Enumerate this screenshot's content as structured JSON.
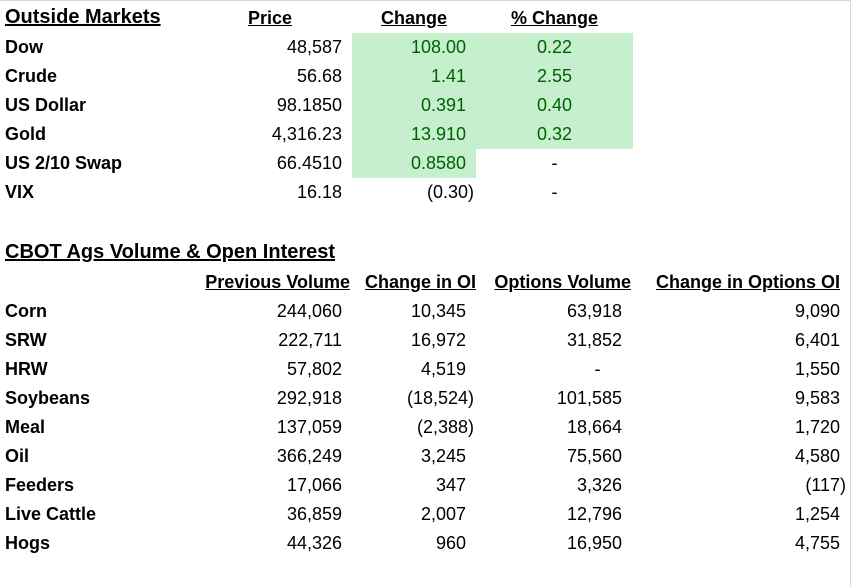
{
  "outside_markets": {
    "title": "Outside Markets",
    "headers": {
      "price": "Price",
      "change": "Change ",
      "pct_change": "% Change"
    },
    "rows": [
      {
        "name": "Dow",
        "price": "48,587",
        "change": "108.00",
        "pct": "0.22"
      },
      {
        "name": "Crude",
        "price": "56.68",
        "change": "1.41",
        "pct": "2.55"
      },
      {
        "name": "US Dollar",
        "price": "98.1850",
        "change": "0.391",
        "pct": "0.40"
      },
      {
        "name": "Gold",
        "price": "4,316.23",
        "change": "13.910",
        "pct": "0.32"
      },
      {
        "name": "US 2/10 Swap",
        "price": "66.4510",
        "change": "0.8580",
        "pct": "-"
      },
      {
        "name": "VIX",
        "price": "16.18",
        "change": "(0.30)",
        "pct": "-"
      }
    ],
    "highlight_color": "#c6efce",
    "positive_text_color": "#006100"
  },
  "cbot": {
    "title": "CBOT Ags Volume & Open Interest",
    "headers": {
      "prev_volume": "Previous Volume",
      "change_oi": "Change in OI",
      "options_volume": "Options Volume",
      "change_options_oi": "Change in Options OI"
    },
    "rows": [
      {
        "name": "Corn",
        "prev": "244,060",
        "oi": "10,345",
        "opt": "63,918",
        "optoi": "9,090"
      },
      {
        "name": "SRW",
        "prev": "222,711",
        "oi": "16,972",
        "opt": "31,852",
        "optoi": "6,401"
      },
      {
        "name": "HRW",
        "prev": "57,802",
        "oi": "4,519",
        "opt": "-",
        "optoi": "1,550"
      },
      {
        "name": "Soybeans",
        "prev": "292,918",
        "oi": "(18,524)",
        "opt": "101,585",
        "optoi": "9,583"
      },
      {
        "name": "Meal",
        "prev": "137,059",
        "oi": "(2,388)",
        "opt": "18,664",
        "optoi": "1,720"
      },
      {
        "name": "Oil",
        "prev": "366,249",
        "oi": "3,245",
        "opt": "75,560",
        "optoi": "4,580"
      },
      {
        "name": "Feeders",
        "prev": "17,066",
        "oi": "347",
        "opt": "3,326",
        "optoi": "(117)"
      },
      {
        "name": "Live Cattle",
        "prev": "36,859",
        "oi": "2,007",
        "opt": "12,796",
        "optoi": "1,254"
      },
      {
        "name": "Hogs",
        "prev": "44,326",
        "oi": "960",
        "opt": "16,950",
        "optoi": "4,755"
      }
    ]
  }
}
